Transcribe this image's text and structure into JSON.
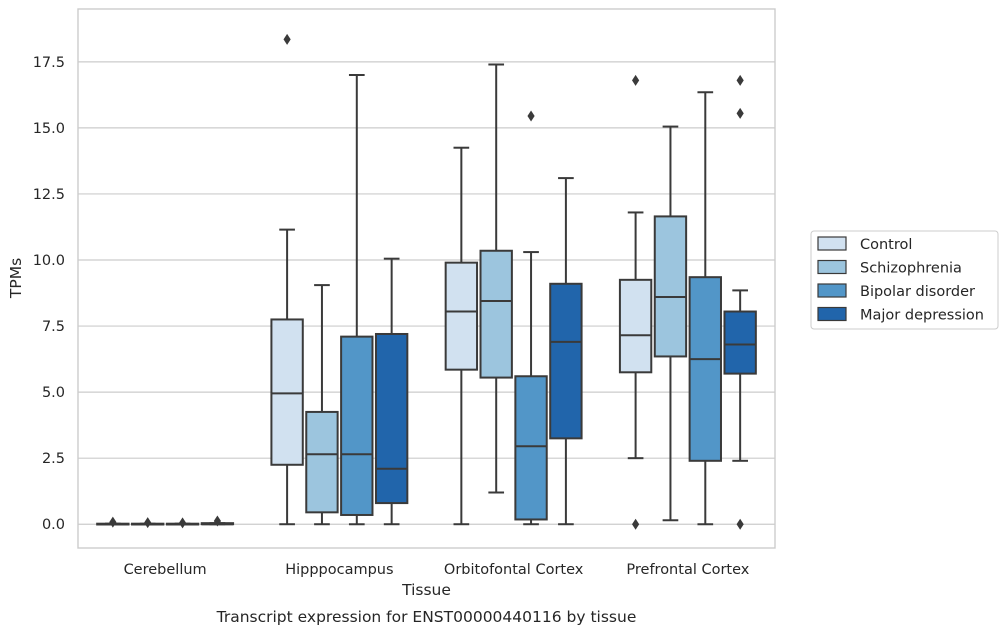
{
  "chart_data": {
    "type": "boxplot",
    "title": "",
    "caption": "Transcript expression for ENST00000440116 by tissue",
    "xlabel": "Tissue",
    "ylabel": "TPMs",
    "ylim": [
      -0.9,
      19.5
    ],
    "yticks": [
      0.0,
      2.5,
      5.0,
      7.5,
      10.0,
      12.5,
      15.0,
      17.5
    ],
    "ytick_labels": [
      "0.0",
      "2.5",
      "5.0",
      "7.5",
      "10.0",
      "12.5",
      "15.0",
      "17.5"
    ],
    "grid": "horizontal",
    "legend_position": "right",
    "categories": [
      "Cerebellum",
      "Hipppocampus",
      "Orbitofontal Cortex",
      "Prefrontal Cortex"
    ],
    "series": [
      {
        "name": "Control",
        "color": "#d1e1f0",
        "boxes": [
          {
            "whislo": 0.0,
            "q1": 0.0,
            "med": 0.0,
            "q3": 0.02,
            "whishi": 0.02,
            "fliers": [
              0.08
            ]
          },
          {
            "whislo": 0.0,
            "q1": 2.25,
            "med": 4.95,
            "q3": 7.75,
            "whishi": 11.15,
            "fliers": [
              18.35
            ]
          },
          {
            "whislo": 0.0,
            "q1": 5.85,
            "med": 8.05,
            "q3": 9.9,
            "whishi": 14.25,
            "fliers": []
          },
          {
            "whislo": 2.5,
            "q1": 5.75,
            "med": 7.15,
            "q3": 9.25,
            "whishi": 11.8,
            "fliers": [
              0.0,
              16.8
            ]
          }
        ]
      },
      {
        "name": "Schizophrenia",
        "color": "#9cc5de",
        "boxes": [
          {
            "whislo": 0.0,
            "q1": 0.0,
            "med": 0.0,
            "q3": 0.02,
            "whishi": 0.02,
            "fliers": [
              0.06
            ]
          },
          {
            "whislo": 0.0,
            "q1": 0.45,
            "med": 2.65,
            "q3": 4.25,
            "whishi": 9.05,
            "fliers": []
          },
          {
            "whislo": 1.2,
            "q1": 5.55,
            "med": 8.45,
            "q3": 10.35,
            "whishi": 17.4,
            "fliers": []
          },
          {
            "whislo": 0.15,
            "q1": 6.35,
            "med": 8.6,
            "q3": 11.65,
            "whishi": 15.05,
            "fliers": []
          }
        ]
      },
      {
        "name": "Bipolar disorder",
        "color": "#5296c8",
        "boxes": [
          {
            "whislo": 0.0,
            "q1": 0.0,
            "med": 0.0,
            "q3": 0.02,
            "whishi": 0.02,
            "fliers": [
              0.05
            ]
          },
          {
            "whislo": 0.0,
            "q1": 0.35,
            "med": 2.65,
            "q3": 7.1,
            "whishi": 17.0,
            "fliers": []
          },
          {
            "whislo": 0.0,
            "q1": 0.18,
            "med": 2.95,
            "q3": 5.6,
            "whishi": 10.3,
            "fliers": [
              15.45
            ]
          },
          {
            "whislo": 0.0,
            "q1": 2.4,
            "med": 6.25,
            "q3": 9.35,
            "whishi": 16.35,
            "fliers": []
          }
        ]
      },
      {
        "name": "Major depression",
        "color": "#2165ab",
        "boxes": [
          {
            "whislo": 0.0,
            "q1": 0.0,
            "med": 0.0,
            "q3": 0.04,
            "whishi": 0.04,
            "fliers": [
              0.12
            ]
          },
          {
            "whislo": 0.0,
            "q1": 0.8,
            "med": 2.1,
            "q3": 7.2,
            "whishi": 10.05,
            "fliers": []
          },
          {
            "whislo": 0.0,
            "q1": 3.25,
            "med": 6.9,
            "q3": 9.1,
            "whishi": 13.1,
            "fliers": []
          },
          {
            "whislo": 2.4,
            "q1": 5.7,
            "med": 6.8,
            "q3": 8.05,
            "whishi": 8.85,
            "fliers": [
              0.0,
              15.55,
              16.8
            ]
          }
        ]
      }
    ]
  }
}
